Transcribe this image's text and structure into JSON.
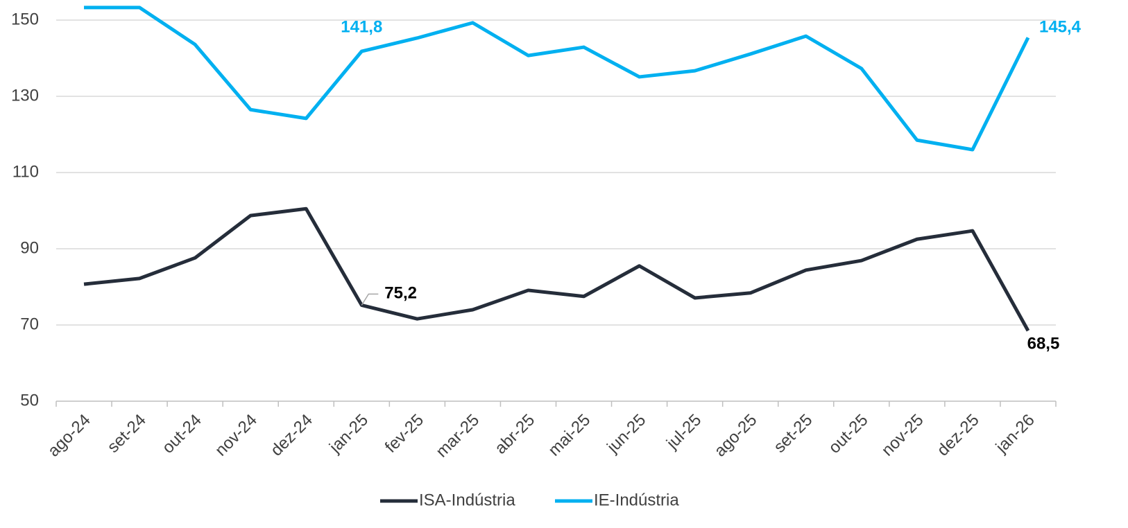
{
  "chart_data": {
    "type": "line",
    "categories": [
      "ago-24",
      "set-24",
      "out-24",
      "nov-24",
      "dez-24",
      "jan-25",
      "fev-25",
      "mar-25",
      "abr-25",
      "mai-25",
      "jun-25",
      "jul-25",
      "ago-25",
      "set-25",
      "out-25",
      "nov-25",
      "dez-25",
      "jan-26"
    ],
    "series": [
      {
        "name": "ISA-Indústria",
        "color": "#252d3a",
        "values": [
          80.7,
          82.2,
          87.6,
          98.7,
          100.5,
          75.2,
          71.6,
          74.0,
          79.1,
          77.5,
          85.5,
          77.1,
          78.4,
          84.4,
          86.9,
          92.5,
          94.7,
          68.5
        ],
        "value_labels": [
          null,
          null,
          null,
          null,
          null,
          "75,2",
          null,
          null,
          null,
          null,
          null,
          null,
          null,
          null,
          null,
          null,
          null,
          "68,5"
        ]
      },
      {
        "name": "IE-Indústria",
        "color": "#00b0f0",
        "values": [
          153.3,
          153.3,
          143.6,
          126.5,
          124.2,
          141.8,
          145.3,
          149.3,
          140.7,
          142.9,
          135.1,
          136.7,
          141.1,
          145.8,
          137.3,
          118.5,
          116.0,
          145.4
        ],
        "value_labels": [
          null,
          null,
          null,
          null,
          null,
          "141,8",
          null,
          null,
          null,
          null,
          null,
          null,
          null,
          null,
          null,
          null,
          null,
          "145,4"
        ]
      }
    ],
    "ylim": [
      50,
      155
    ],
    "yticks": [
      50,
      70,
      90,
      110,
      130,
      150
    ],
    "grid": true,
    "legend": "bottom"
  }
}
